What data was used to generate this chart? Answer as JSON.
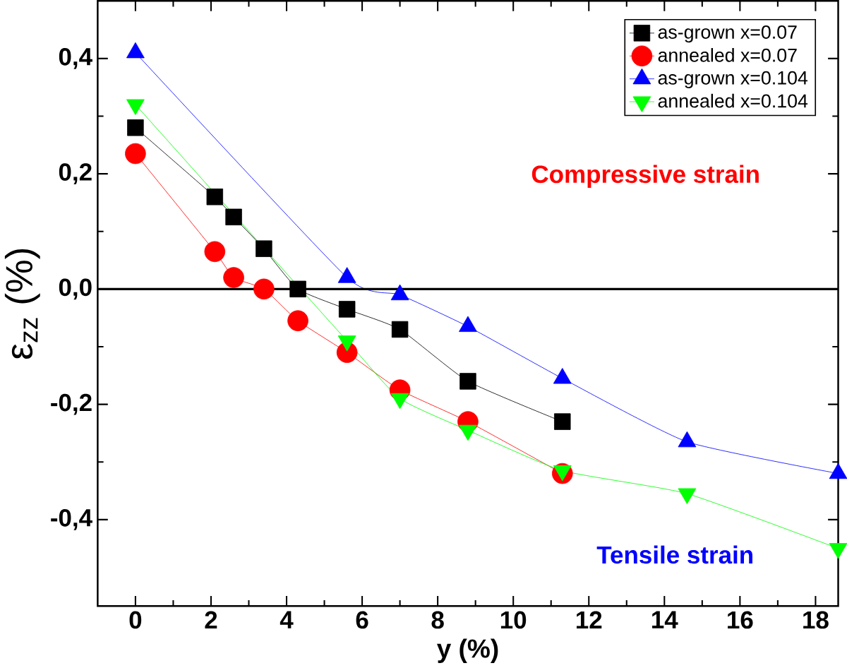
{
  "chart_data": {
    "type": "line",
    "xlabel": "y (%)",
    "ylabel": "ε$_{zz}$ (%)",
    "series": [
      {
        "name": "as-grown x=0.07",
        "color": "#000000",
        "marker": "square",
        "x": [
          0,
          2.1,
          2.6,
          3.4,
          4.3,
          5.6,
          7,
          8.8,
          11.3
        ],
        "values": [
          0.28,
          0.16,
          0.125,
          0.07,
          0.0,
          -0.035,
          -0.07,
          -0.16,
          -0.23
        ]
      },
      {
        "name": "annealed x=0.07",
        "color": "#ff0000",
        "marker": "circle",
        "x": [
          0,
          2.1,
          2.6,
          3.4,
          4.3,
          5.6,
          7,
          8.8,
          11.3
        ],
        "values": [
          0.235,
          0.065,
          0.02,
          0.0,
          -0.055,
          -0.11,
          -0.175,
          -0.23,
          -0.32
        ]
      },
      {
        "name": "as-grown x=0.104",
        "color": "#0000ff",
        "marker": "triangle",
        "x": [
          0,
          5.6,
          7,
          8.8,
          11.3,
          14.6,
          18.6
        ],
        "values": [
          0.41,
          0.02,
          -0.01,
          -0.065,
          -0.155,
          -0.265,
          -0.32
        ]
      },
      {
        "name": "annealed x=0.104",
        "color": "#00ff00",
        "marker": "triangle-down",
        "x": [
          0,
          5.6,
          7,
          8.8,
          11.3,
          14.6,
          18.6
        ],
        "values": [
          0.32,
          -0.09,
          -0.19,
          -0.245,
          -0.315,
          -0.355,
          -0.45
        ]
      }
    ],
    "xlim": [
      -1,
      18.6
    ],
    "ylim": [
      -0.55,
      0.5
    ],
    "xticks": [
      0,
      2,
      4,
      6,
      8,
      10,
      12,
      14,
      16,
      18
    ],
    "yticks": [
      {
        "value": -0.4,
        "label": "-0,4"
      },
      {
        "value": -0.2,
        "label": "-0,2"
      },
      {
        "value": 0.0,
        "label": "0,0"
      },
      {
        "value": 0.2,
        "label": "0,2"
      },
      {
        "value": 0.4,
        "label": "0,4"
      }
    ],
    "ref_lines": [
      {
        "axis": "y",
        "value": 0,
        "color": "#000000"
      }
    ],
    "annotations": [
      "Compressive strain",
      "Tensile strain"
    ],
    "legend": "top right",
    "grid": false,
    "line_style": "solid"
  }
}
